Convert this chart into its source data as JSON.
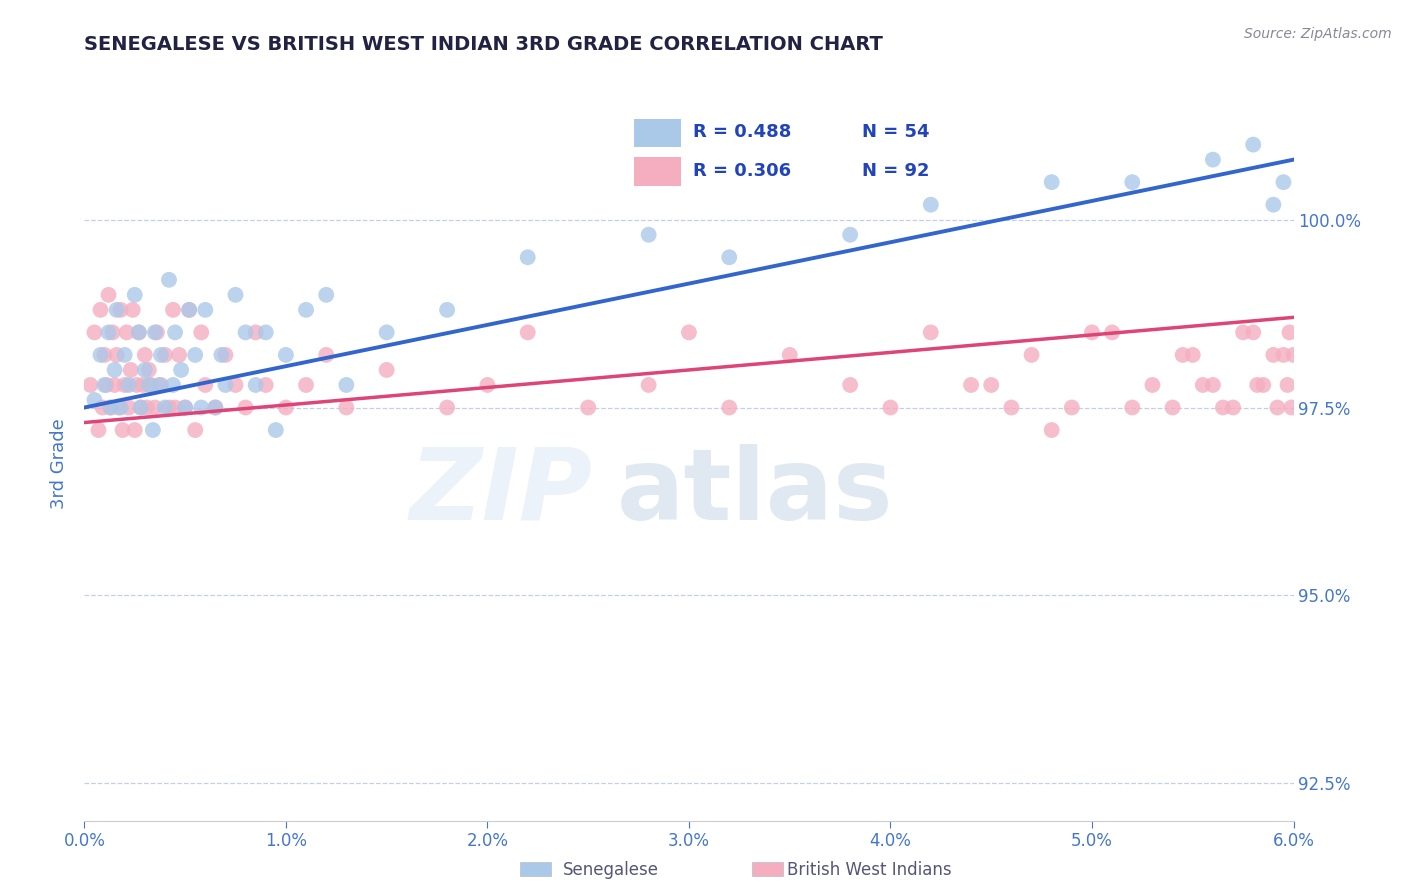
{
  "title": "SENEGALESE VS BRITISH WEST INDIAN 3RD GRADE CORRELATION CHART",
  "source": "Source: ZipAtlas.com",
  "ylabel": "3rd Grade",
  "xmin": 0.0,
  "xmax": 6.0,
  "ymin": 92.0,
  "ymax": 101.5,
  "yticks": [
    92.5,
    95.0,
    97.5,
    100.0
  ],
  "ytick_labels": [
    "92.5%",
    "95.0%",
    "97.5%",
    "100.0%"
  ],
  "blue_label": "Senegalese",
  "pink_label": "British West Indians",
  "blue_R": 0.488,
  "blue_N": 54,
  "pink_R": 0.306,
  "pink_N": 92,
  "blue_color": "#aac8e8",
  "pink_color": "#f4aec0",
  "blue_line_color": "#3366cc",
  "pink_line_color": "#dd4477",
  "legend_R_color": "#2244bb",
  "title_color": "#222244",
  "axis_color": "#4477cc",
  "blue_scatter_x": [
    0.05,
    0.08,
    0.1,
    0.12,
    0.13,
    0.15,
    0.16,
    0.18,
    0.2,
    0.22,
    0.25,
    0.27,
    0.28,
    0.3,
    0.32,
    0.34,
    0.35,
    0.37,
    0.38,
    0.4,
    0.42,
    0.44,
    0.45,
    0.48,
    0.5,
    0.52,
    0.55,
    0.58,
    0.6,
    0.65,
    0.68,
    0.7,
    0.75,
    0.8,
    0.85,
    0.9,
    0.95,
    1.0,
    1.1,
    1.2,
    1.3,
    1.5,
    1.8,
    2.2,
    2.8,
    3.2,
    3.8,
    4.2,
    4.8,
    5.2,
    5.6,
    5.8,
    5.9,
    5.95
  ],
  "blue_scatter_y": [
    97.6,
    98.2,
    97.8,
    98.5,
    97.5,
    98.0,
    98.8,
    97.5,
    98.2,
    97.8,
    99.0,
    98.5,
    97.5,
    98.0,
    97.8,
    97.2,
    98.5,
    97.8,
    98.2,
    97.5,
    99.2,
    97.8,
    98.5,
    98.0,
    97.5,
    98.8,
    98.2,
    97.5,
    98.8,
    97.5,
    98.2,
    97.8,
    99.0,
    98.5,
    97.8,
    98.5,
    97.2,
    98.2,
    98.8,
    99.0,
    97.8,
    98.5,
    98.8,
    99.5,
    99.8,
    99.5,
    99.8,
    100.2,
    100.5,
    100.5,
    100.8,
    101.0,
    100.2,
    100.5
  ],
  "pink_scatter_x": [
    0.03,
    0.05,
    0.07,
    0.08,
    0.09,
    0.1,
    0.11,
    0.12,
    0.13,
    0.14,
    0.15,
    0.16,
    0.17,
    0.18,
    0.19,
    0.2,
    0.21,
    0.22,
    0.23,
    0.24,
    0.25,
    0.26,
    0.27,
    0.28,
    0.29,
    0.3,
    0.31,
    0.32,
    0.33,
    0.35,
    0.36,
    0.38,
    0.4,
    0.42,
    0.44,
    0.45,
    0.47,
    0.5,
    0.52,
    0.55,
    0.58,
    0.6,
    0.65,
    0.7,
    0.75,
    0.8,
    0.85,
    0.9,
    1.0,
    1.1,
    1.2,
    1.3,
    1.5,
    1.8,
    2.0,
    2.2,
    2.5,
    2.8,
    3.0,
    3.2,
    3.5,
    3.8,
    4.0,
    4.2,
    4.5,
    4.8,
    5.0,
    5.2,
    5.5,
    5.6,
    5.7,
    5.8,
    5.85,
    5.9,
    5.92,
    5.95,
    5.97,
    5.98,
    5.99,
    6.0,
    4.4,
    4.6,
    4.7,
    4.9,
    5.1,
    5.3,
    5.4,
    5.45,
    5.55,
    5.65,
    5.75,
    5.82
  ],
  "pink_scatter_y": [
    97.8,
    98.5,
    97.2,
    98.8,
    97.5,
    98.2,
    97.8,
    99.0,
    97.5,
    98.5,
    97.8,
    98.2,
    97.5,
    98.8,
    97.2,
    97.8,
    98.5,
    97.5,
    98.0,
    98.8,
    97.2,
    97.8,
    98.5,
    97.5,
    97.8,
    98.2,
    97.5,
    98.0,
    97.8,
    97.5,
    98.5,
    97.8,
    98.2,
    97.5,
    98.8,
    97.5,
    98.2,
    97.5,
    98.8,
    97.2,
    98.5,
    97.8,
    97.5,
    98.2,
    97.8,
    97.5,
    98.5,
    97.8,
    97.5,
    97.8,
    98.2,
    97.5,
    98.0,
    97.5,
    97.8,
    98.5,
    97.5,
    97.8,
    98.5,
    97.5,
    98.2,
    97.8,
    97.5,
    98.5,
    97.8,
    97.2,
    98.5,
    97.5,
    98.2,
    97.8,
    97.5,
    98.5,
    97.8,
    98.2,
    97.5,
    98.2,
    97.8,
    98.5,
    97.5,
    98.2,
    97.8,
    97.5,
    98.2,
    97.5,
    98.5,
    97.8,
    97.5,
    98.2,
    97.8,
    97.5,
    98.5,
    97.8
  ]
}
